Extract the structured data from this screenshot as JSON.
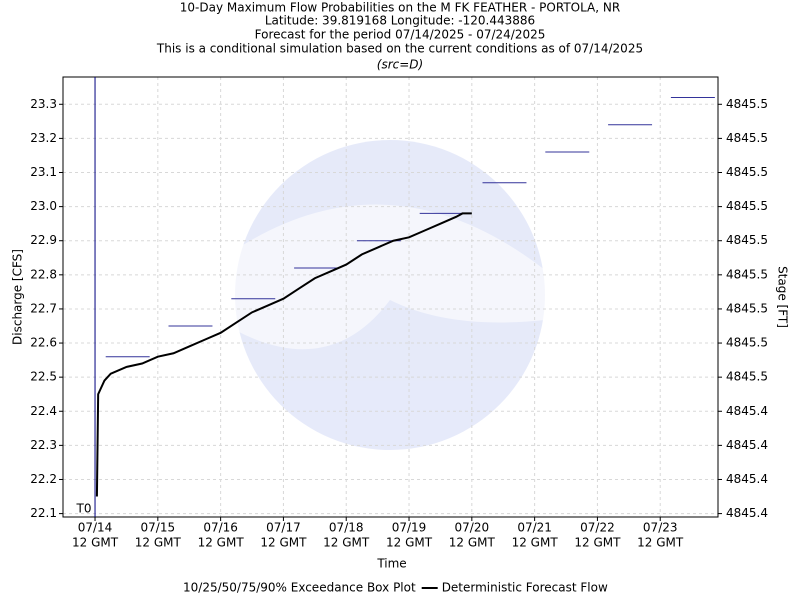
{
  "chart_data": {
    "type": "line",
    "title": "10-Day Maximum Flow Probabilities on the M FK FEATHER - PORTOLA, NR",
    "subtitle_lines": [
      "Latitude: 39.819168 Longitude: -120.443886",
      "Forecast for the period 07/14/2025 - 07/24/2025",
      "This is a conditional simulation based on the current conditions as of 07/14/2025",
      "(src=D)"
    ],
    "x_label": "Time",
    "y_label": "Discharge [CFS]",
    "y2_label": "Stage [FT]",
    "t0_label": "T0",
    "xtick_sublabel": "12 GMT",
    "xlim": [
      -0.51,
      9.92
    ],
    "xticks": [
      {
        "value": 0,
        "label": "07/14"
      },
      {
        "value": 1,
        "label": "07/15"
      },
      {
        "value": 2,
        "label": "07/16"
      },
      {
        "value": 3,
        "label": "07/17"
      },
      {
        "value": 4,
        "label": "07/18"
      },
      {
        "value": 5,
        "label": "07/19"
      },
      {
        "value": 6,
        "label": "07/20"
      },
      {
        "value": 7,
        "label": "07/21"
      },
      {
        "value": 8,
        "label": "07/22"
      },
      {
        "value": 9,
        "label": "07/23"
      }
    ],
    "ylim": [
      22.09,
      23.38
    ],
    "yticks": [
      22.1,
      22.2,
      22.3,
      22.4,
      22.5,
      22.6,
      22.7,
      22.8,
      22.9,
      {
        "value": 23,
        "label": "23.0"
      },
      23.1,
      23.2,
      23.3
    ],
    "y2lim": [
      4845.409,
      4845.538
    ],
    "y2ticks": [
      {
        "value": 4845.41,
        "label": "4845.4"
      },
      {
        "value": 4845.42,
        "label": "4845.4"
      },
      {
        "value": 4845.43,
        "label": "4845.4"
      },
      {
        "value": 4845.44,
        "label": "4845.4"
      },
      {
        "value": 4845.45,
        "label": "4845.5"
      },
      {
        "value": 4845.46,
        "label": "4845.5"
      },
      {
        "value": 4845.47,
        "label": "4845.5"
      },
      {
        "value": 4845.48,
        "label": "4845.5"
      },
      {
        "value": 4845.49,
        "label": "4845.5"
      },
      {
        "value": 4845.5,
        "label": "4845.5"
      },
      {
        "value": 4845.51,
        "label": "4845.5"
      },
      {
        "value": 4845.52,
        "label": "4845.5"
      },
      {
        "value": 4845.53,
        "label": "4845.5"
      }
    ],
    "grid": true,
    "t0": 0,
    "series": [
      {
        "name": "10/25/50/75/90% Exceedance Box Plot",
        "kind": "box",
        "color": "#33339a",
        "x": [
          0.52,
          1.52,
          2.52,
          3.52,
          4.52,
          5.52,
          6.52,
          7.52,
          8.52,
          9.52
        ],
        "values": [
          22.56,
          22.65,
          22.73,
          22.82,
          22.9,
          22.98,
          23.07,
          23.16,
          23.24,
          23.32
        ]
      },
      {
        "name": "Deterministic Forecast Flow",
        "kind": "line",
        "color": "#000000",
        "x": [
          0.03,
          0.05,
          0.1,
          0.15,
          0.25,
          0.5,
          0.75,
          1.0,
          1.25,
          1.5,
          1.75,
          2.0,
          2.25,
          2.5,
          2.75,
          3.0,
          3.25,
          3.5,
          3.75,
          4.0,
          4.25,
          4.5,
          4.75,
          5.0,
          5.25,
          5.5,
          5.75,
          5.85,
          6.0
        ],
        "values": [
          22.15,
          22.45,
          22.47,
          22.49,
          22.51,
          22.53,
          22.54,
          22.56,
          22.57,
          22.59,
          22.61,
          22.63,
          22.66,
          22.69,
          22.71,
          22.73,
          22.76,
          22.79,
          22.81,
          22.83,
          22.86,
          22.88,
          22.9,
          22.91,
          22.93,
          22.95,
          22.97,
          22.98,
          22.98
        ]
      }
    ]
  }
}
